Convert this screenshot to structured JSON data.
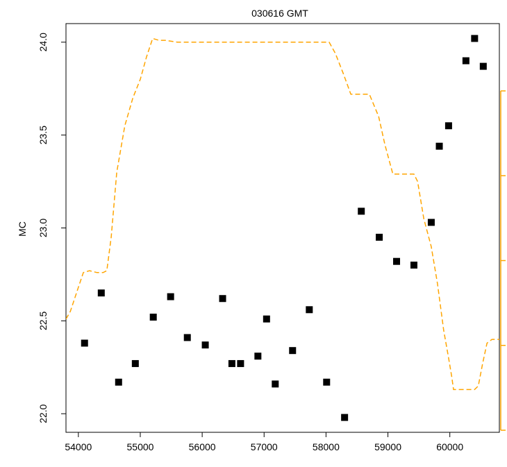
{
  "chart_data": {
    "type": "scatter",
    "title": "030616 GMT",
    "xlabel": "",
    "ylabel": "MC",
    "xlim": [
      53800,
      60800
    ],
    "ylim": [
      21.9,
      24.1
    ],
    "x_ticks": [
      54000,
      55000,
      56000,
      57000,
      58000,
      59000,
      60000
    ],
    "x_tick_labels": [
      "54000",
      "55000",
      "56000",
      "57000",
      "58000",
      "59000",
      "60000"
    ],
    "y_ticks": [
      22.0,
      22.5,
      23.0,
      23.5,
      24.0
    ],
    "y_tick_labels": [
      "22.0",
      "22.5",
      "23.0",
      "23.5",
      "24.0"
    ],
    "grid": false,
    "series": [
      {
        "type": "scatter",
        "marker": "square",
        "color": "#000000",
        "points": [
          [
            54100,
            22.38
          ],
          [
            54370,
            22.65
          ],
          [
            54650,
            22.17
          ],
          [
            54920,
            22.27
          ],
          [
            55210,
            22.52
          ],
          [
            55490,
            22.63
          ],
          [
            55760,
            22.41
          ],
          [
            56050,
            22.37
          ],
          [
            56330,
            22.62
          ],
          [
            56480,
            22.27
          ],
          [
            56620,
            22.27
          ],
          [
            56900,
            22.31
          ],
          [
            57040,
            22.51
          ],
          [
            57180,
            22.16
          ],
          [
            57460,
            22.34
          ],
          [
            57730,
            22.56
          ],
          [
            58010,
            22.17
          ],
          [
            58300,
            21.98
          ],
          [
            58570,
            23.09
          ],
          [
            58860,
            22.95
          ],
          [
            59140,
            22.82
          ],
          [
            59420,
            22.8
          ],
          [
            59700,
            23.03
          ],
          [
            59830,
            23.44
          ],
          [
            59980,
            23.55
          ],
          [
            60260,
            23.9
          ],
          [
            60400,
            24.02
          ],
          [
            60540,
            23.87
          ]
        ]
      },
      {
        "type": "line",
        "style": "dashed",
        "color": "#ffa500",
        "points": [
          [
            53800,
            22.51
          ],
          [
            53870,
            22.55
          ],
          [
            54000,
            22.68
          ],
          [
            54080,
            22.76
          ],
          [
            54180,
            22.77
          ],
          [
            54300,
            22.76
          ],
          [
            54400,
            22.76
          ],
          [
            54460,
            22.77
          ],
          [
            54530,
            22.95
          ],
          [
            54620,
            23.3
          ],
          [
            54750,
            23.55
          ],
          [
            54880,
            23.7
          ],
          [
            55000,
            23.8
          ],
          [
            55100,
            23.92
          ],
          [
            55200,
            24.02
          ],
          [
            55300,
            24.01
          ],
          [
            55400,
            24.01
          ],
          [
            55600,
            24.0
          ],
          [
            56000,
            24.0
          ],
          [
            56500,
            24.0
          ],
          [
            57000,
            24.0
          ],
          [
            57500,
            24.0
          ],
          [
            58000,
            24.0
          ],
          [
            58050,
            24.0
          ],
          [
            58150,
            23.94
          ],
          [
            58280,
            23.83
          ],
          [
            58400,
            23.72
          ],
          [
            58550,
            23.72
          ],
          [
            58700,
            23.72
          ],
          [
            58850,
            23.6
          ],
          [
            58950,
            23.45
          ],
          [
            59080,
            23.29
          ],
          [
            59200,
            23.29
          ],
          [
            59420,
            23.29
          ],
          [
            59480,
            23.25
          ],
          [
            59580,
            23.05
          ],
          [
            59700,
            22.9
          ],
          [
            59800,
            22.7
          ],
          [
            59900,
            22.45
          ],
          [
            59980,
            22.3
          ],
          [
            60030,
            22.2
          ],
          [
            60060,
            22.13
          ],
          [
            60200,
            22.13
          ],
          [
            60400,
            22.13
          ],
          [
            60460,
            22.15
          ],
          [
            60530,
            22.27
          ],
          [
            60600,
            22.38
          ],
          [
            60680,
            22.4
          ],
          [
            60800,
            22.4
          ]
        ]
      }
    ],
    "secondary_axis": {
      "side": "right",
      "color": "#ffa500",
      "tick_labels": []
    }
  }
}
